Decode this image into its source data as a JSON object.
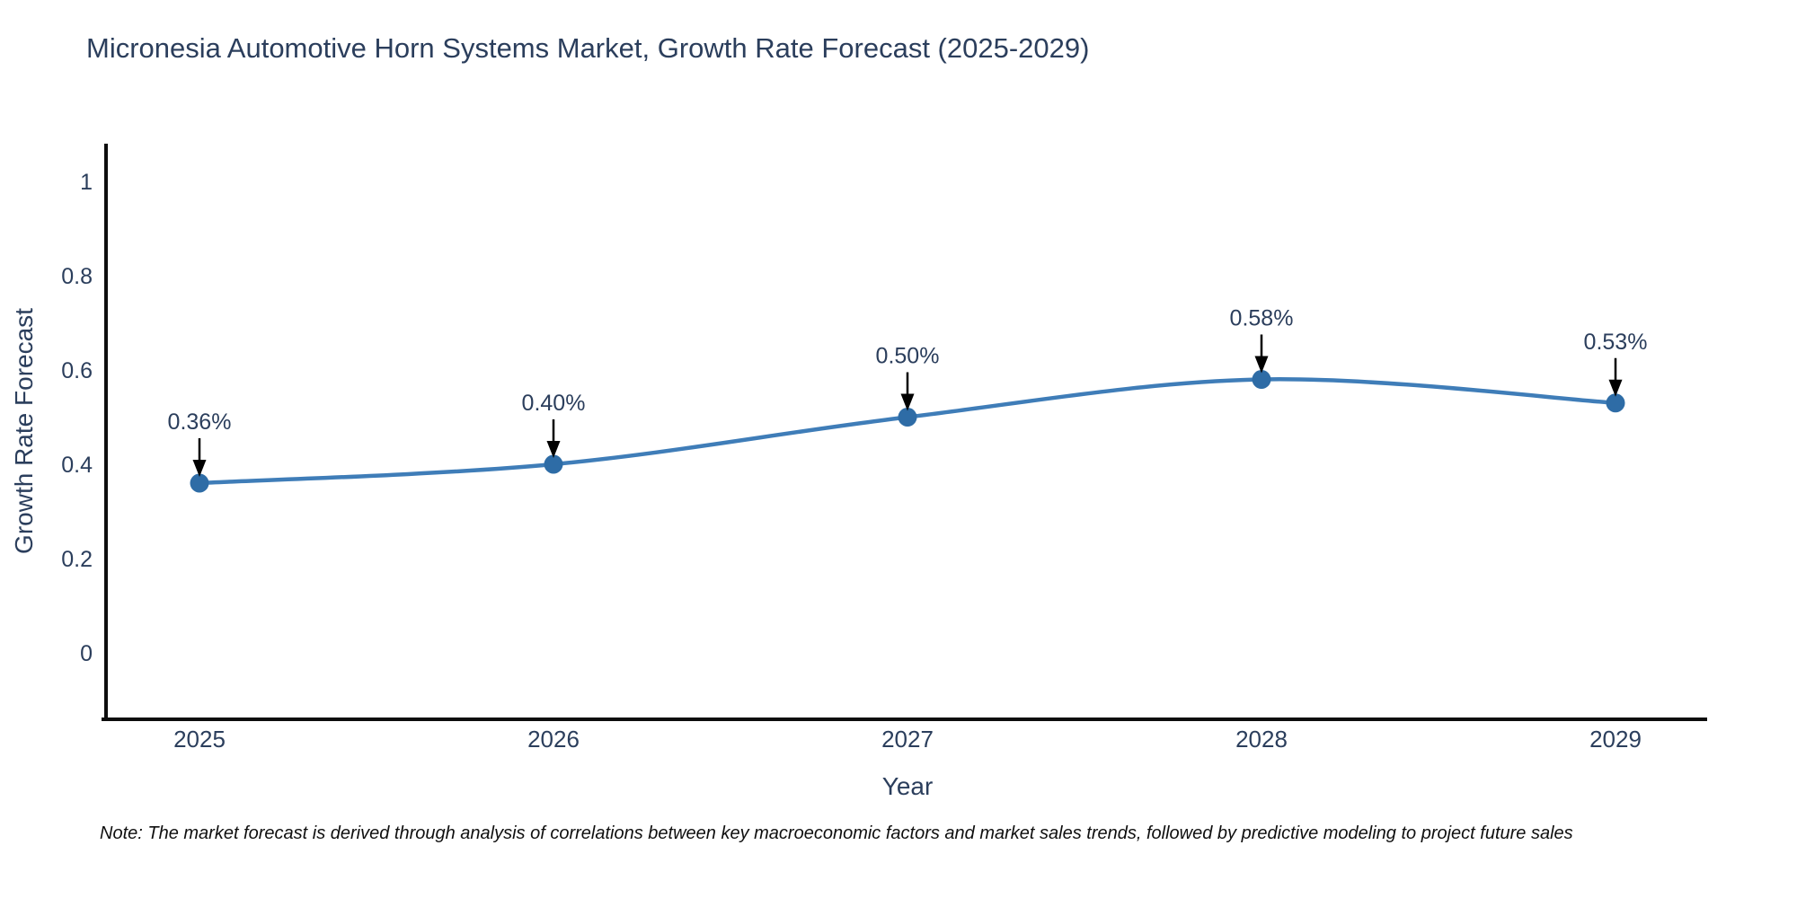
{
  "chart_data": {
    "type": "line",
    "title": "Micronesia Automotive Horn Systems Market, Growth Rate Forecast (2025-2029)",
    "xlabel": "Year",
    "ylabel": "Growth Rate Forecast",
    "categories": [
      "2025",
      "2026",
      "2027",
      "2028",
      "2029"
    ],
    "values": [
      0.36,
      0.4,
      0.5,
      0.58,
      0.53
    ],
    "point_labels": [
      "0.36%",
      "0.40%",
      "0.50%",
      "0.58%",
      "0.53%"
    ],
    "yticks": [
      1,
      0.8,
      0.6,
      0.4,
      0.2,
      0
    ],
    "ylim": [
      -0.14,
      1.08
    ],
    "grid": false,
    "legend": "none",
    "line_shape": "spline",
    "colors": {
      "line": "#3f7db8",
      "marker": "#2e6ca6",
      "axis": "#0d0d0d",
      "tick_text": "#2b3e5c",
      "annotation_text": "#2b3e5c",
      "annotation_arrow": "#000000",
      "title_text": "#2b3e5c"
    },
    "note": "Note: The market forecast is derived through analysis of correlations between key macroeconomic factors and market sales trends, followed by predictive modeling to project future sales"
  }
}
